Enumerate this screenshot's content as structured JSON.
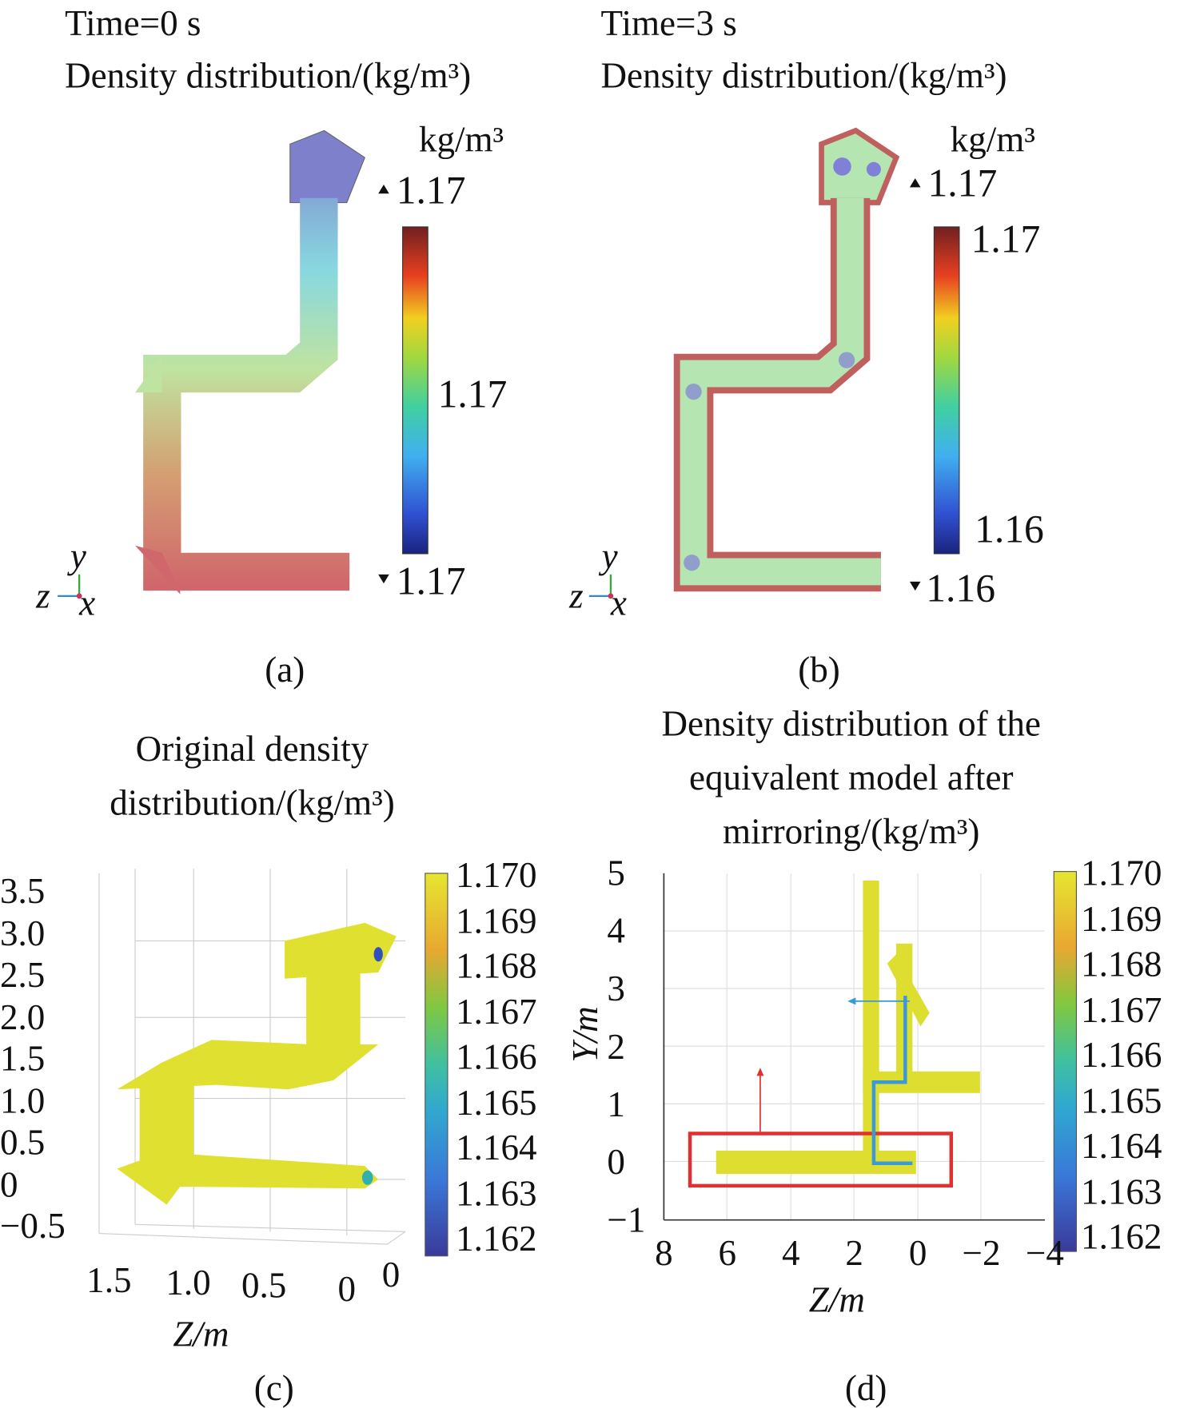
{
  "panels": {
    "a": {
      "time": "Time=0 s",
      "title": "Density distribution/(kg/m³)",
      "unit": "kg/m³",
      "max_marker": "1.17",
      "mid_tick": "1.17",
      "min_marker": "1.17",
      "label": "(a)",
      "axes": {
        "y": "y",
        "z": "z",
        "x": "x"
      }
    },
    "b": {
      "time": "Time=3 s",
      "title": "Density distribution/(kg/m³)",
      "unit": "kg/m³",
      "max_marker": "1.17",
      "top_tick": "1.17",
      "bottom_tick": "1.16",
      "min_marker": "1.16",
      "label": "(b)",
      "axes": {
        "y": "y",
        "z": "z",
        "x": "x"
      }
    },
    "c": {
      "title_line1": "Original density",
      "title_line2": "distribution/(kg/m³)",
      "xlabel": "Z/m",
      "label": "(c)"
    },
    "d": {
      "title_line1": "Density distribution of the",
      "title_line2": "equivalent model after",
      "title_line3": "mirroring/(kg/m³)",
      "xlabel": "Z/m",
      "ylabel": "Y/m",
      "label": "(d)"
    }
  },
  "chart_data": [
    {
      "panel": "a",
      "type": "heatmap",
      "colormap": "jet",
      "colorbar_ticks": [
        "1.17"
      ],
      "range_labels": [
        "1.17",
        "1.17"
      ],
      "colors": {
        "top": "#7f80cc",
        "bottom": "#d0676c"
      }
    },
    {
      "panel": "b",
      "type": "heatmap",
      "colormap": "jet",
      "colorbar_ticks": [
        "1.17",
        "1.16"
      ],
      "range_labels": [
        "1.17",
        "1.16"
      ],
      "colors": {
        "interior": "#b5e5b0",
        "wall": "#c0605e"
      }
    },
    {
      "panel": "c",
      "type": "scatter",
      "projection": "3d",
      "colormap": "parula",
      "yticks": [
        "3.5",
        "3.0",
        "2.5",
        "2.0",
        "1.5",
        "1.0",
        "0.5",
        "0",
        "−0.5"
      ],
      "xticks": [
        "1.5",
        "1.0",
        "0.5",
        "0"
      ],
      "other_tick": "0",
      "xlabel": "Z/m",
      "colorbar_ticks": [
        "1.170",
        "1.169",
        "1.168",
        "1.167",
        "1.166",
        "1.165",
        "1.164",
        "1.163",
        "1.162"
      ],
      "clim": [
        1.162,
        1.17
      ],
      "grid": true
    },
    {
      "panel": "d",
      "type": "scatter",
      "colormap": "parula",
      "xlim": [
        8,
        -4
      ],
      "ylim": [
        -1,
        5
      ],
      "xticks": [
        "8",
        "6",
        "4",
        "2",
        "0",
        "−2",
        "−4"
      ],
      "yticks": [
        "5",
        "4",
        "3",
        "2",
        "1",
        "0",
        "−1"
      ],
      "xlabel": "Z/m",
      "ylabel": "Y/m",
      "colorbar_ticks": [
        "1.170",
        "1.169",
        "1.168",
        "1.167",
        "1.166",
        "1.165",
        "1.164",
        "1.163",
        "1.162"
      ],
      "clim": [
        1.162,
        1.17
      ],
      "grid": true,
      "highlight_box": {
        "z": [
          7.1,
          -1.3
        ],
        "y": [
          -0.4,
          0.5
        ],
        "color": "#e03030"
      },
      "path_color": "#3a9ad8"
    }
  ]
}
